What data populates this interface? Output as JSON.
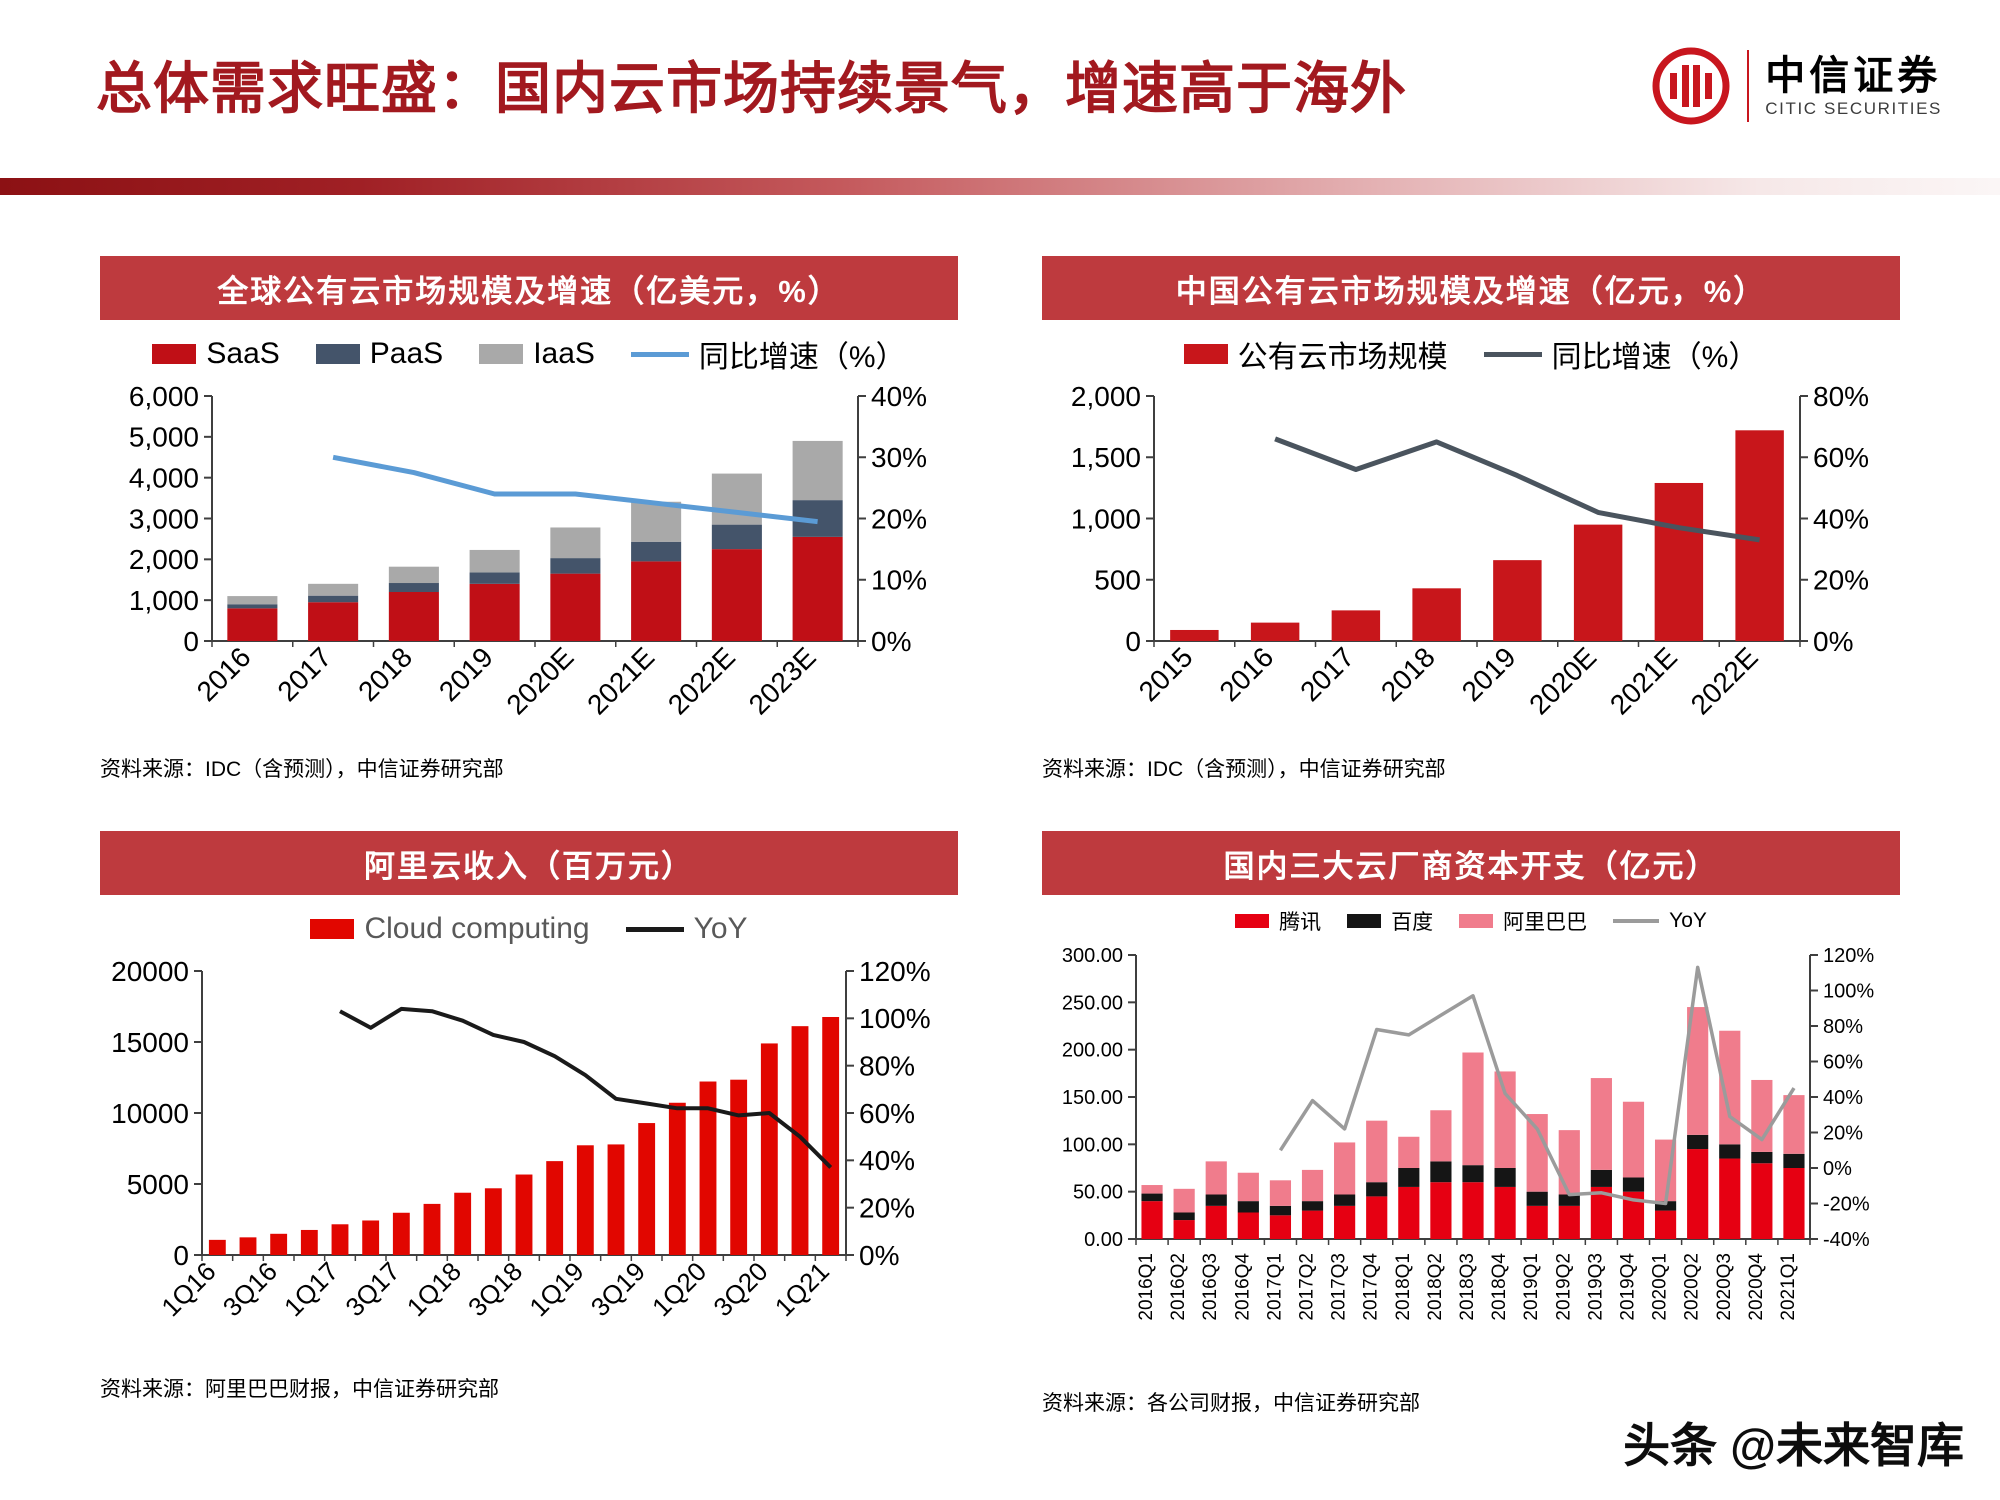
{
  "page": {
    "title": "总体需求旺盛：国内云市场持续景气，增速高于海外",
    "logo": {
      "name": "中信证券",
      "subtitle": "CITIC SECURITIES"
    },
    "watermark": "头条 @未来智库"
  },
  "chart_data": [
    {
      "type": "bar",
      "subtype": "stacked-bar-line",
      "title": "全球公有云市场规模及增速（亿美元，%）",
      "source": "资料来源：IDC（含预测），中信证券研究部",
      "categories": [
        "2016",
        "2017",
        "2018",
        "2019",
        "2020E",
        "2021E",
        "2022E",
        "2023E"
      ],
      "x_label_rotation": -45,
      "label_every": 1,
      "series": [
        {
          "name": "SaaS",
          "type": "bar",
          "color": "#C00F16",
          "values": [
            800,
            950,
            1200,
            1400,
            1650,
            1950,
            2250,
            2550
          ]
        },
        {
          "name": "PaaS",
          "type": "bar",
          "color": "#44546A",
          "values": [
            100,
            160,
            220,
            280,
            380,
            480,
            600,
            900
          ]
        },
        {
          "name": "IaaS",
          "type": "bar",
          "color": "#A9A9A9",
          "values": [
            200,
            290,
            400,
            550,
            750,
            980,
            1250,
            1450
          ]
        },
        {
          "name": "同比增速（%）",
          "type": "line",
          "axis": "right",
          "color": "#5B9BD5",
          "values": [
            null,
            30,
            27.5,
            24,
            24,
            22.5,
            21,
            19.5
          ]
        }
      ],
      "left_axis": {
        "min": 0,
        "max": 6000,
        "ticks": [
          {
            "v": 0,
            "l": "0"
          },
          {
            "v": 1000,
            "l": "1,000"
          },
          {
            "v": 2000,
            "l": "2,000"
          },
          {
            "v": 3000,
            "l": "3,000"
          },
          {
            "v": 4000,
            "l": "4,000"
          },
          {
            "v": 5000,
            "l": "5,000"
          },
          {
            "v": 6000,
            "l": "6,000"
          }
        ]
      },
      "right_axis": {
        "min": 0,
        "max": 40,
        "ticks": [
          {
            "v": 0,
            "l": "0%"
          },
          {
            "v": 10,
            "l": "10%"
          },
          {
            "v": 20,
            "l": "20%"
          },
          {
            "v": 30,
            "l": "30%"
          },
          {
            "v": 40,
            "l": "40%"
          }
        ]
      }
    },
    {
      "type": "bar",
      "subtype": "bar-line",
      "title": "中国公有云市场规模及增速（亿元，%）",
      "source": "资料来源：IDC（含预测），中信证券研究部",
      "categories": [
        "2015",
        "2016",
        "2017",
        "2018",
        "2019",
        "2020E",
        "2021E",
        "2022E"
      ],
      "x_label_rotation": -45,
      "label_every": 1,
      "series": [
        {
          "name": "公有云市场规模",
          "type": "bar",
          "color": "#C8161B",
          "values": [
            90,
            150,
            250,
            430,
            660,
            950,
            1290,
            1720
          ]
        },
        {
          "name": "同比增速（%）",
          "type": "line",
          "axis": "right",
          "color": "#4A545E",
          "values": [
            null,
            66,
            56,
            65,
            54,
            42,
            37,
            33
          ]
        }
      ],
      "left_axis": {
        "min": 0,
        "max": 2000,
        "ticks": [
          {
            "v": 0,
            "l": "0"
          },
          {
            "v": 500,
            "l": "500"
          },
          {
            "v": 1000,
            "l": "1,000"
          },
          {
            "v": 1500,
            "l": "1,500"
          },
          {
            "v": 2000,
            "l": "2,000"
          }
        ]
      },
      "right_axis": {
        "min": 0,
        "max": 80,
        "ticks": [
          {
            "v": 0,
            "l": "0%"
          },
          {
            "v": 20,
            "l": "20%"
          },
          {
            "v": 40,
            "l": "40%"
          },
          {
            "v": 60,
            "l": "60%"
          },
          {
            "v": 80,
            "l": "80%"
          }
        ]
      }
    },
    {
      "type": "bar",
      "subtype": "bar-line",
      "title": "阿里云收入（百万元）",
      "source": "资料来源：阿里巴巴财报，中信证券研究部",
      "categories": [
        "1Q16",
        "2Q16",
        "3Q16",
        "4Q16",
        "1Q17",
        "2Q17",
        "3Q17",
        "4Q17",
        "1Q18",
        "2Q18",
        "3Q18",
        "4Q18",
        "1Q19",
        "2Q19",
        "3Q19",
        "4Q19",
        "1Q20",
        "2Q20",
        "3Q20",
        "4Q20",
        "1Q21"
      ],
      "x_label_rotation": -45,
      "label_every": 2,
      "series": [
        {
          "name": "Cloud computing",
          "type": "bar",
          "color": "#E10600",
          "values": [
            1066,
            1243,
            1493,
            1764,
            2163,
            2431,
            2975,
            3599,
            4385,
            4698,
            5667,
            6611,
            7726,
            7787,
            9291,
            10721,
            12217,
            12345,
            14899,
            16115,
            16761
          ]
        },
        {
          "name": "YoY",
          "type": "line",
          "axis": "right",
          "color": "#1A1A1A",
          "values": [
            null,
            null,
            null,
            null,
            103,
            96,
            104,
            103,
            99,
            93,
            90,
            84,
            76,
            66,
            64,
            62,
            62,
            59,
            60,
            50,
            37
          ]
        }
      ],
      "left_axis": {
        "min": 0,
        "max": 20000,
        "ticks": [
          {
            "v": 0,
            "l": "0"
          },
          {
            "v": 5000,
            "l": "5000"
          },
          {
            "v": 10000,
            "l": "10000"
          },
          {
            "v": 15000,
            "l": "15000"
          },
          {
            "v": 20000,
            "l": "20000"
          }
        ]
      },
      "right_axis": {
        "min": 0,
        "max": 120,
        "ticks": [
          {
            "v": 0,
            "l": "0%"
          },
          {
            "v": 20,
            "l": "20%"
          },
          {
            "v": 40,
            "l": "40%"
          },
          {
            "v": 60,
            "l": "60%"
          },
          {
            "v": 80,
            "l": "80%"
          },
          {
            "v": 100,
            "l": "100%"
          },
          {
            "v": 120,
            "l": "120%"
          }
        ]
      }
    },
    {
      "type": "bar",
      "subtype": "stacked-bar-line",
      "title": "国内三大云厂商资本开支（亿元）",
      "source": "资料来源：各公司财报，中信证券研究部",
      "categories": [
        "2016Q1",
        "2016Q2",
        "2016Q3",
        "2016Q4",
        "2017Q1",
        "2017Q2",
        "2017Q3",
        "2017Q4",
        "2018Q1",
        "2018Q2",
        "2018Q3",
        "2018Q4",
        "2019Q1",
        "2019Q2",
        "2019Q3",
        "2019Q4",
        "2020Q1",
        "2020Q2",
        "2020Q3",
        "2020Q4",
        "2021Q1"
      ],
      "x_label_rotation": -90,
      "label_every": 1,
      "series": [
        {
          "name": "腾讯",
          "type": "bar",
          "color": "#E60012",
          "values": [
            40,
            20,
            35,
            28,
            25,
            30,
            35,
            45,
            55,
            60,
            60,
            55,
            35,
            35,
            55,
            50,
            30,
            95,
            85,
            80,
            75
          ]
        },
        {
          "name": "百度",
          "type": "bar",
          "color": "#151515",
          "values": [
            8,
            8,
            12,
            12,
            10,
            10,
            12,
            15,
            20,
            22,
            18,
            20,
            15,
            12,
            18,
            15,
            10,
            15,
            15,
            12,
            15
          ]
        },
        {
          "name": "阿里巴巴",
          "type": "bar",
          "color": "#F07C8C",
          "values": [
            9,
            25,
            35,
            30,
            27,
            33,
            55,
            65,
            33,
            54,
            119,
            102,
            82,
            68,
            97,
            80,
            65,
            135,
            120,
            76,
            62
          ]
        },
        {
          "name": "YoY",
          "type": "line",
          "axis": "right",
          "color": "#9B9B9B",
          "values": [
            null,
            null,
            null,
            null,
            10,
            38,
            22,
            78,
            75,
            86,
            97,
            42,
            22,
            -15,
            -14,
            -18,
            -20,
            113,
            29,
            16,
            45
          ]
        }
      ],
      "left_axis": {
        "min": 0,
        "max": 300,
        "ticks": [
          {
            "v": 0,
            "l": "0.00"
          },
          {
            "v": 50,
            "l": "50.00"
          },
          {
            "v": 100,
            "l": "100.00"
          },
          {
            "v": 150,
            "l": "150.00"
          },
          {
            "v": 200,
            "l": "200.00"
          },
          {
            "v": 250,
            "l": "250.00"
          },
          {
            "v": 300,
            "l": "300.00"
          }
        ]
      },
      "right_axis": {
        "min": -40,
        "max": 120,
        "ticks": [
          {
            "v": -40,
            "l": "-40%"
          },
          {
            "v": -20,
            "l": "-20%"
          },
          {
            "v": 0,
            "l": "0%"
          },
          {
            "v": 20,
            "l": "20%"
          },
          {
            "v": 40,
            "l": "40%"
          },
          {
            "v": 60,
            "l": "60%"
          },
          {
            "v": 80,
            "l": "80%"
          },
          {
            "v": 100,
            "l": "100%"
          },
          {
            "v": 120,
            "l": "120%"
          }
        ]
      }
    }
  ]
}
